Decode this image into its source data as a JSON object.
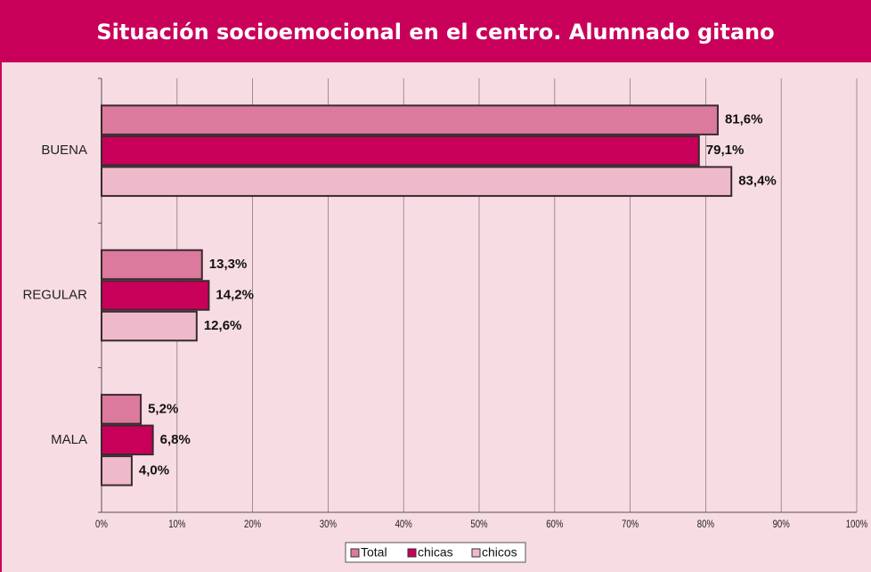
{
  "chart_data": {
    "type": "hbar",
    "title": "Situación socioemocional en el centro. Alumnado gitano",
    "categories": [
      "BUENA",
      "REGULAR",
      "MALA"
    ],
    "series": [
      {
        "name": "Total",
        "color": "#db7a9c",
        "values": [
          81.6,
          13.3,
          5.2
        ],
        "value_labels": [
          "81,6%",
          "13,3%",
          "5,2%"
        ]
      },
      {
        "name": "chicas",
        "color": "#c8005a",
        "values": [
          79.1,
          14.2,
          6.8
        ],
        "value_labels": [
          "79,1%",
          "14,2%",
          "6,8%"
        ]
      },
      {
        "name": "chicos",
        "color": "#eebacb",
        "values": [
          83.4,
          12.6,
          4.0
        ],
        "value_labels": [
          "83,4%",
          "12,6%",
          "4,0%"
        ]
      }
    ],
    "xlim": [
      0,
      100
    ],
    "xticks": [
      {
        "value": 0,
        "label": "0%"
      },
      {
        "value": 10,
        "label": "10%"
      },
      {
        "value": 20,
        "label": "20%"
      },
      {
        "value": 30,
        "label": "30%"
      },
      {
        "value": 40,
        "label": "40%"
      },
      {
        "value": 50,
        "label": "50%"
      },
      {
        "value": 60,
        "label": "60%"
      },
      {
        "value": 70,
        "label": "70%"
      },
      {
        "value": 80,
        "label": "80%"
      },
      {
        "value": 90,
        "label": "90%"
      },
      {
        "value": 100,
        "label": "100%"
      }
    ],
    "grid": true,
    "legend": "bottom"
  }
}
